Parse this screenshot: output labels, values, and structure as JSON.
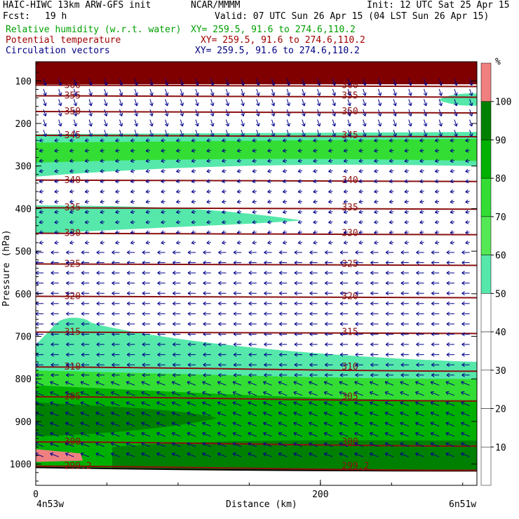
{
  "header": {
    "title": "HAIC-HIWC 13km ARW-GFS init",
    "source": "NCAR/MMMM",
    "init": "Init: 12 UTC Sat 25 Apr 15",
    "fcst_label": "Fcst:",
    "fcst_value": "19 h",
    "valid": "Valid: 07 UTC Sun 26 Apr 15 (04 LST Sun 26 Apr 15)",
    "fields": [
      {
        "name": "Relative humidity (w.r.t. water)",
        "xy": "XY= 259.5, 91.6 to 274.6,110.2",
        "color": "#00a000"
      },
      {
        "name": "Potential temperature",
        "xy": "XY= 259.5, 91.6 to 274.6,110.2",
        "color": "#a00000"
      },
      {
        "name": "Circulation vectors",
        "xy": "XY= 259.5, 91.6 to 274.6,110.2",
        "color": "#000080"
      }
    ]
  },
  "colors": {
    "rh_50": "#55e8aa",
    "rh_70": "#33dd33",
    "rh_80": "#00b000",
    "rh_90": "#008000",
    "rh_100": "#f08080",
    "theta": "#8b1010",
    "vector": "#00008b",
    "top_band": "#800000"
  },
  "chart_data": {
    "type": "contour-cross-section",
    "xlabel": "Distance (km)",
    "ylabel": "Pressure (hPa)",
    "x_ticks": [
      "0",
      "200"
    ],
    "x_tick_values": [
      0,
      200
    ],
    "y_ticks": [
      "100",
      "200",
      "300",
      "400",
      "500",
      "600",
      "700",
      "800",
      "900",
      "1000"
    ],
    "y_tick_values": [
      100,
      200,
      300,
      400,
      500,
      600,
      700,
      800,
      900,
      1000
    ],
    "xlim": [
      0,
      310
    ],
    "ylim": [
      1050,
      55
    ],
    "x_start_label": "4n53w",
    "x_end_label": "6n51w",
    "colorbar": {
      "unit": "%",
      "labels": [
        "10",
        "20",
        "30",
        "40",
        "50",
        "60",
        "70",
        "80",
        "90",
        "100"
      ],
      "values": [
        10,
        20,
        30,
        40,
        50,
        60,
        70,
        80,
        90,
        100
      ]
    },
    "theta_contours": [
      {
        "label": "360",
        "p": 110
      },
      {
        "label": "355",
        "p": 135
      },
      {
        "label": "350",
        "p": 172
      },
      {
        "label": "345",
        "p": 228
      },
      {
        "label": "340",
        "p": 333
      },
      {
        "label": "335",
        "p": 398
      },
      {
        "label": "330",
        "p": 458
      },
      {
        "label": "325",
        "p": 530
      },
      {
        "label": "320",
        "p": 606
      },
      {
        "label": "315",
        "p": 690
      },
      {
        "label": "310",
        "p": 772
      },
      {
        "label": "305",
        "p": 842
      },
      {
        "label": "300",
        "p": 948
      },
      {
        "label": "299.2",
        "p": 1005
      }
    ]
  }
}
